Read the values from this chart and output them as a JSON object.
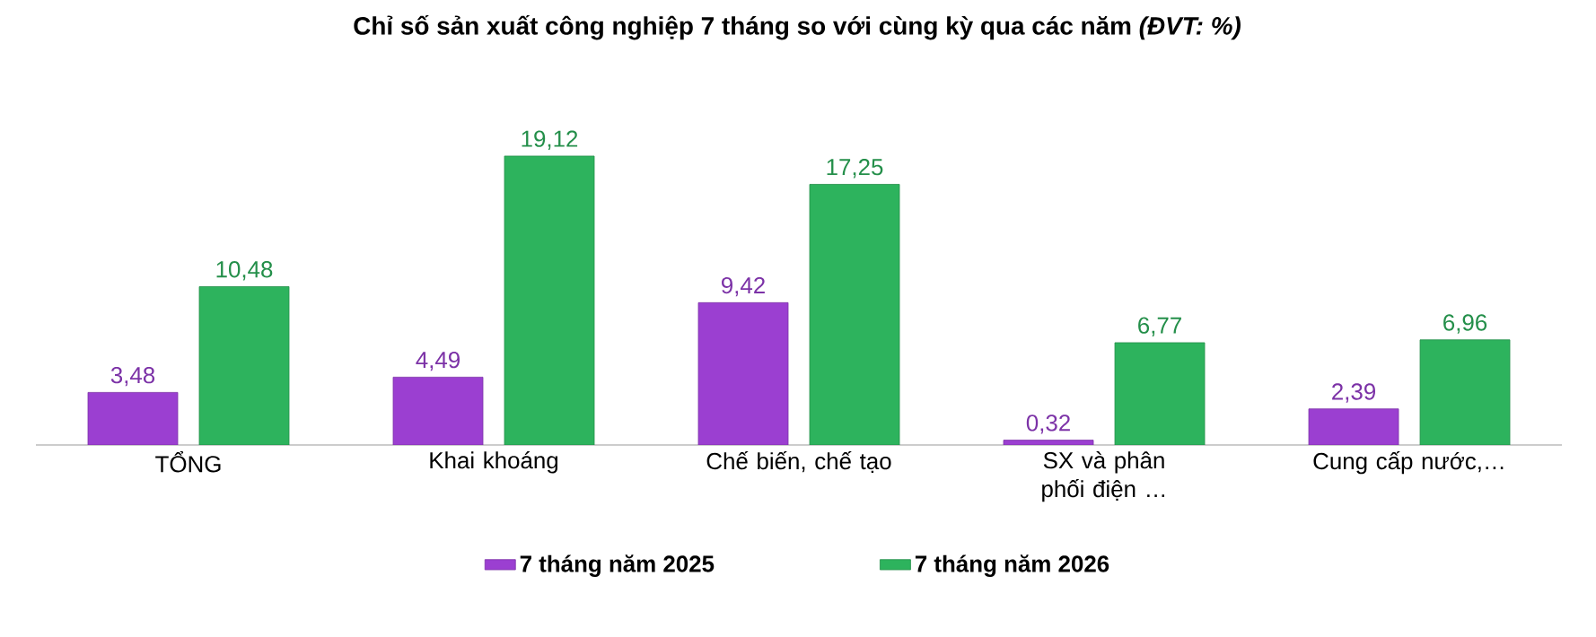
{
  "chart_data": {
    "type": "bar",
    "title": "Chỉ số sản xuất công nghiệp 7 tháng so với cùng kỳ qua các năm *(ĐVT: %)*",
    "categories": [
      "TỔNG",
      "Khai khoáng",
      "Chế biến, chế tạo",
      "SX và phân phối điện …",
      "Cung cấp nước,…"
    ],
    "series": [
      {
        "name": "7 tháng năm 2025",
        "color": "#9b3fd1",
        "values": [
          3.48,
          4.49,
          9.42,
          0.32,
          2.39
        ],
        "value_labels": [
          "3,48",
          "4,49",
          "9,42",
          "0,32",
          "2,39"
        ]
      },
      {
        "name": "7 tháng năm 2026",
        "color": "#2db35d",
        "values": [
          10.48,
          19.12,
          17.25,
          6.77,
          6.96
        ],
        "value_labels": [
          "10,48",
          "19,12",
          "17,25",
          "6,77",
          "6,96"
        ]
      }
    ],
    "legend": "bottom"
  }
}
